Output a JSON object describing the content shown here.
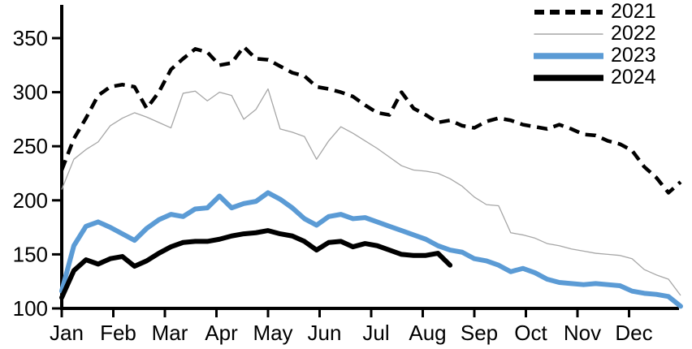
{
  "chart_data": {
    "type": "line",
    "title": "",
    "x_axis": {
      "categories": [
        "Jan",
        "Feb",
        "Mar",
        "Apr",
        "May",
        "Jun",
        "Jul",
        "Aug",
        "Sep",
        "Oct",
        "Nov",
        "Dec"
      ],
      "unit": "month-of-year"
    },
    "y_axis": {
      "ticks": [
        100,
        150,
        200,
        250,
        300,
        350
      ],
      "range": [
        100,
        350
      ],
      "grid": false
    },
    "legend": {
      "position": "upper-right",
      "entries": [
        "2021",
        "2022",
        "2023",
        "2024"
      ]
    },
    "x_step_months": 0.23529,
    "series": [
      {
        "name": "2021",
        "color": "#000000",
        "style": "dashed",
        "width": 4.5,
        "values": [
          228,
          257,
          276,
          297,
          305,
          307,
          305,
          285,
          300,
          321,
          331,
          340,
          337,
          325,
          327,
          342,
          331,
          330,
          324,
          318,
          315,
          305,
          303,
          300,
          296,
          288,
          281,
          279,
          300,
          285,
          279,
          272,
          274,
          269,
          267,
          273,
          276,
          274,
          270,
          268,
          266,
          270,
          266,
          261,
          260,
          255,
          252,
          246,
          231,
          221,
          207,
          217
        ]
      },
      {
        "name": "2022",
        "color": "#A6A6A6",
        "style": "solid",
        "width": 1.3,
        "values": [
          210,
          238,
          247,
          254,
          269,
          276,
          281,
          277,
          272,
          267,
          299,
          301,
          292,
          300,
          297,
          275,
          284,
          303,
          266,
          263,
          259,
          238,
          255,
          268,
          262,
          255,
          248,
          240,
          232,
          228,
          227,
          225,
          220,
          213,
          203,
          196,
          195,
          170,
          168,
          165,
          160,
          158,
          155,
          153,
          151,
          150,
          149,
          146,
          136,
          131,
          127,
          112
        ]
      },
      {
        "name": "2023",
        "color": "#5B9BD5",
        "style": "solid",
        "width": 6,
        "values": [
          116,
          158,
          176,
          180,
          175,
          169,
          163,
          174,
          182,
          187,
          185,
          192,
          193,
          204,
          193,
          197,
          199,
          207,
          201,
          193,
          183,
          177,
          185,
          187,
          183,
          184,
          180,
          176,
          172,
          168,
          164,
          158,
          154,
          152,
          146,
          144,
          140,
          134,
          137,
          133,
          127,
          124,
          123,
          122,
          123,
          122,
          121,
          116,
          114,
          113,
          111,
          102
        ]
      },
      {
        "name": "2024",
        "color": "#000000",
        "style": "solid",
        "width": 6,
        "values": [
          110,
          135,
          145,
          141,
          146,
          148,
          139,
          144,
          151,
          157,
          161,
          162,
          162,
          164,
          167,
          169,
          170,
          172,
          169,
          167,
          162,
          154,
          161,
          162,
          157,
          160,
          158,
          154,
          150,
          149,
          149,
          151,
          140
        ]
      }
    ]
  }
}
